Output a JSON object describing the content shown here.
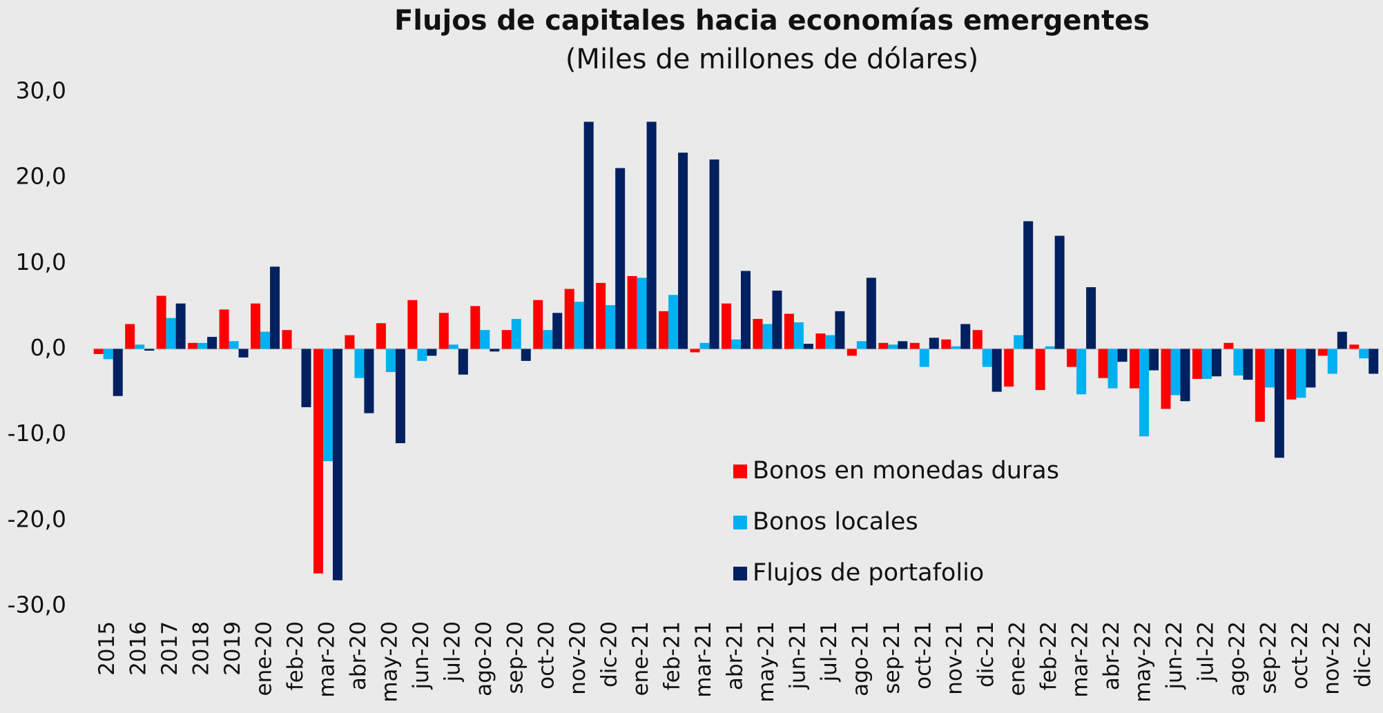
{
  "chart_data": {
    "type": "bar",
    "title": "Flujos de capitales hacia economías emergentes",
    "subtitle": "(Miles de millones de dólares)",
    "categories": [
      "2015",
      "2016",
      "2017",
      "2018",
      "2019",
      "ene-20",
      "feb-20",
      "mar-20",
      "abr-20",
      "may-20",
      "jun-20",
      "jul-20",
      "ago-20",
      "sep-20",
      "oct-20",
      "nov-20",
      "dic-20",
      "ene-21",
      "feb-21",
      "mar-21",
      "abr-21",
      "may-21",
      "jun-21",
      "jul-21",
      "ago-21",
      "sep-21",
      "oct-21",
      "nov-21",
      "dic-21",
      "ene-22",
      "feb-22",
      "mar-22",
      "abr-22",
      "may-22",
      "jun-22",
      "jul-22",
      "ago-22",
      "sep-22",
      "oct-22",
      "nov-22",
      "dic-22"
    ],
    "series": [
      {
        "name": "Bonos en monedas duras",
        "color": "#ff0000",
        "values": [
          -0.6,
          2.9,
          6.2,
          0.7,
          4.6,
          5.3,
          2.2,
          -26.2,
          1.6,
          3.0,
          5.7,
          4.2,
          5.0,
          2.2,
          5.7,
          7.0,
          7.7,
          8.5,
          4.4,
          -0.4,
          5.3,
          3.5,
          4.1,
          1.8,
          -0.8,
          0.7,
          0.7,
          1.1,
          2.2,
          -4.4,
          -4.8,
          -2.1,
          -3.4,
          -4.6,
          -7.0,
          -3.5,
          0.7,
          -8.5,
          -5.9,
          -0.8,
          0.5
        ]
      },
      {
        "name": "Bonos locales",
        "color": "#00b0f0",
        "values": [
          -1.2,
          0.5,
          3.6,
          0.7,
          0.9,
          2.0,
          0,
          -13.1,
          -3.4,
          -2.7,
          -1.4,
          0.5,
          2.2,
          3.5,
          2.2,
          5.5,
          5.1,
          8.3,
          6.3,
          0.7,
          1.1,
          2.9,
          3.1,
          1.6,
          0.9,
          0.5,
          -2.1,
          0.3,
          -2.1,
          1.6,
          0.3,
          -5.3,
          -4.6,
          -10.2,
          -5.4,
          -3.5,
          -3.1,
          -4.5,
          -5.7,
          -2.9,
          -1.1
        ]
      },
      {
        "name": "Flujos de portafolio",
        "color": "#002060",
        "values": [
          -5.5,
          -0.2,
          5.3,
          1.4,
          -1.0,
          9.6,
          -6.8,
          -27.0,
          -7.5,
          -11.0,
          -0.8,
          -3.0,
          -0.3,
          -1.4,
          4.2,
          26.5,
          21.1,
          26.5,
          22.9,
          22.1,
          9.1,
          6.8,
          0.6,
          4.4,
          8.3,
          0.9,
          1.3,
          2.9,
          -5.0,
          14.9,
          13.2,
          7.2,
          -1.5,
          -2.5,
          -6.1,
          -3.2,
          -3.6,
          -12.7,
          -4.5,
          2.0,
          -2.9
        ]
      }
    ],
    "ylim": [
      -30,
      30
    ],
    "yticks": [
      {
        "value": -30,
        "label": "-30,0"
      },
      {
        "value": -20,
        "label": "-20,0"
      },
      {
        "value": -10,
        "label": "-10,0"
      },
      {
        "value": 0,
        "label": "0,0"
      },
      {
        "value": 10,
        "label": "10,0"
      },
      {
        "value": 20,
        "label": "20,0"
      },
      {
        "value": 30,
        "label": "30,0"
      }
    ],
    "grid": false
  }
}
